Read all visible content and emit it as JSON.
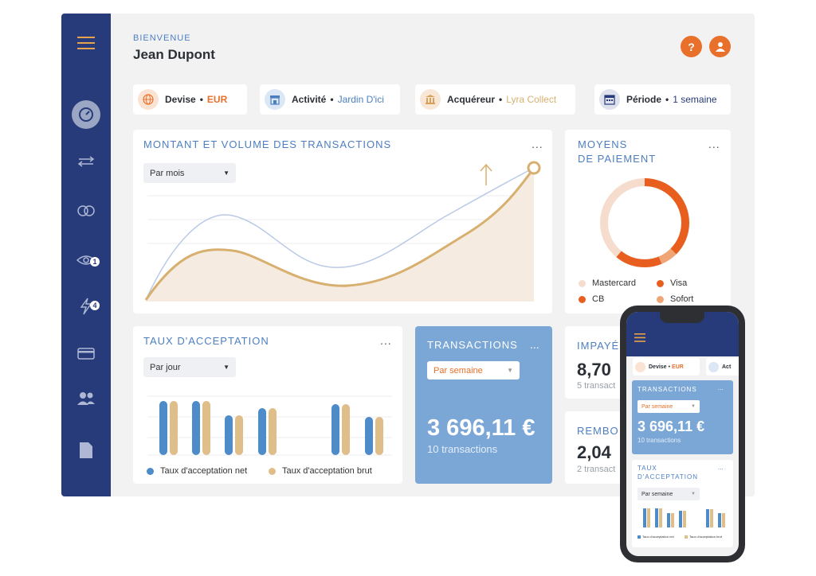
{
  "header": {
    "greeting": "BIENVENUE",
    "user_name": "Jean Dupont"
  },
  "sidebar": {
    "items": [
      {
        "icon": "menu-icon"
      },
      {
        "icon": "gauge-icon"
      },
      {
        "icon": "exchange-icon"
      },
      {
        "icon": "rings-icon"
      },
      {
        "icon": "eye-icon",
        "badge": "1"
      },
      {
        "icon": "lightning-icon",
        "badge": "4"
      },
      {
        "icon": "card-icon"
      },
      {
        "icon": "users-icon"
      },
      {
        "icon": "document-icon"
      }
    ]
  },
  "filters": {
    "devise": {
      "label": "Devise",
      "value": "EUR"
    },
    "activite": {
      "label": "Activité",
      "value": "Jardin D'ici"
    },
    "acquereur": {
      "label": "Acquéreur",
      "value": "Lyra Collect"
    },
    "periode": {
      "label": "Période",
      "value": "1 semaine"
    }
  },
  "montant": {
    "title": "MONTANT ET VOLUME DES TRANSACTIONS",
    "select": "Par mois",
    "more": "..."
  },
  "moyens": {
    "title_line1": "MOYENS",
    "title_line2": "DE PAIEMENT",
    "more": "...",
    "legend": [
      {
        "label": "Mastercard",
        "color": "#f6dccd"
      },
      {
        "label": "Visa",
        "color": "#e85e1f"
      },
      {
        "label": "CB",
        "color": "#e85e1f"
      },
      {
        "label": "Sofort",
        "color": "#f0a577"
      }
    ]
  },
  "acceptation": {
    "title": "TAUX D'ACCEPTATION",
    "select": "Par jour",
    "more": "...",
    "legend_net": "Taux d'acceptation net",
    "legend_brut": "Taux d'acceptation brut"
  },
  "transactions": {
    "title": "TRANSACTIONS",
    "select": "Par semaine",
    "amount": "3 696,11 €",
    "count": "10 transactions",
    "more": "..."
  },
  "impayes": {
    "title": "IMPAYÉ",
    "value": "8,70",
    "sub": "5 transact"
  },
  "rembo": {
    "title": "REMBO",
    "value": "2,04",
    "sub": "2 transact"
  },
  "phone": {
    "chip_label": "Devise",
    "chip_value": "EUR",
    "chip2_partial": "Act",
    "transactions_title": "TRANSACTIONS",
    "transactions_select": "Par semaine",
    "transactions_amount": "3 696,11 €",
    "transactions_count": "10 transactions",
    "taux_title_line1": "TAUX",
    "taux_title_line2": "D'ACCEPTATION",
    "taux_select": "Par semaine",
    "legend_net": "Taux d'acceptation net",
    "legend_brut": "Taux d'acceptation brut",
    "more": "..."
  },
  "colors": {
    "sidebar": "#273b7a",
    "accent_orange": "#e8702a",
    "accent_blue": "#4d7fc0",
    "gold": "#d7b070",
    "transactions_card": "#7ba7d7"
  }
}
